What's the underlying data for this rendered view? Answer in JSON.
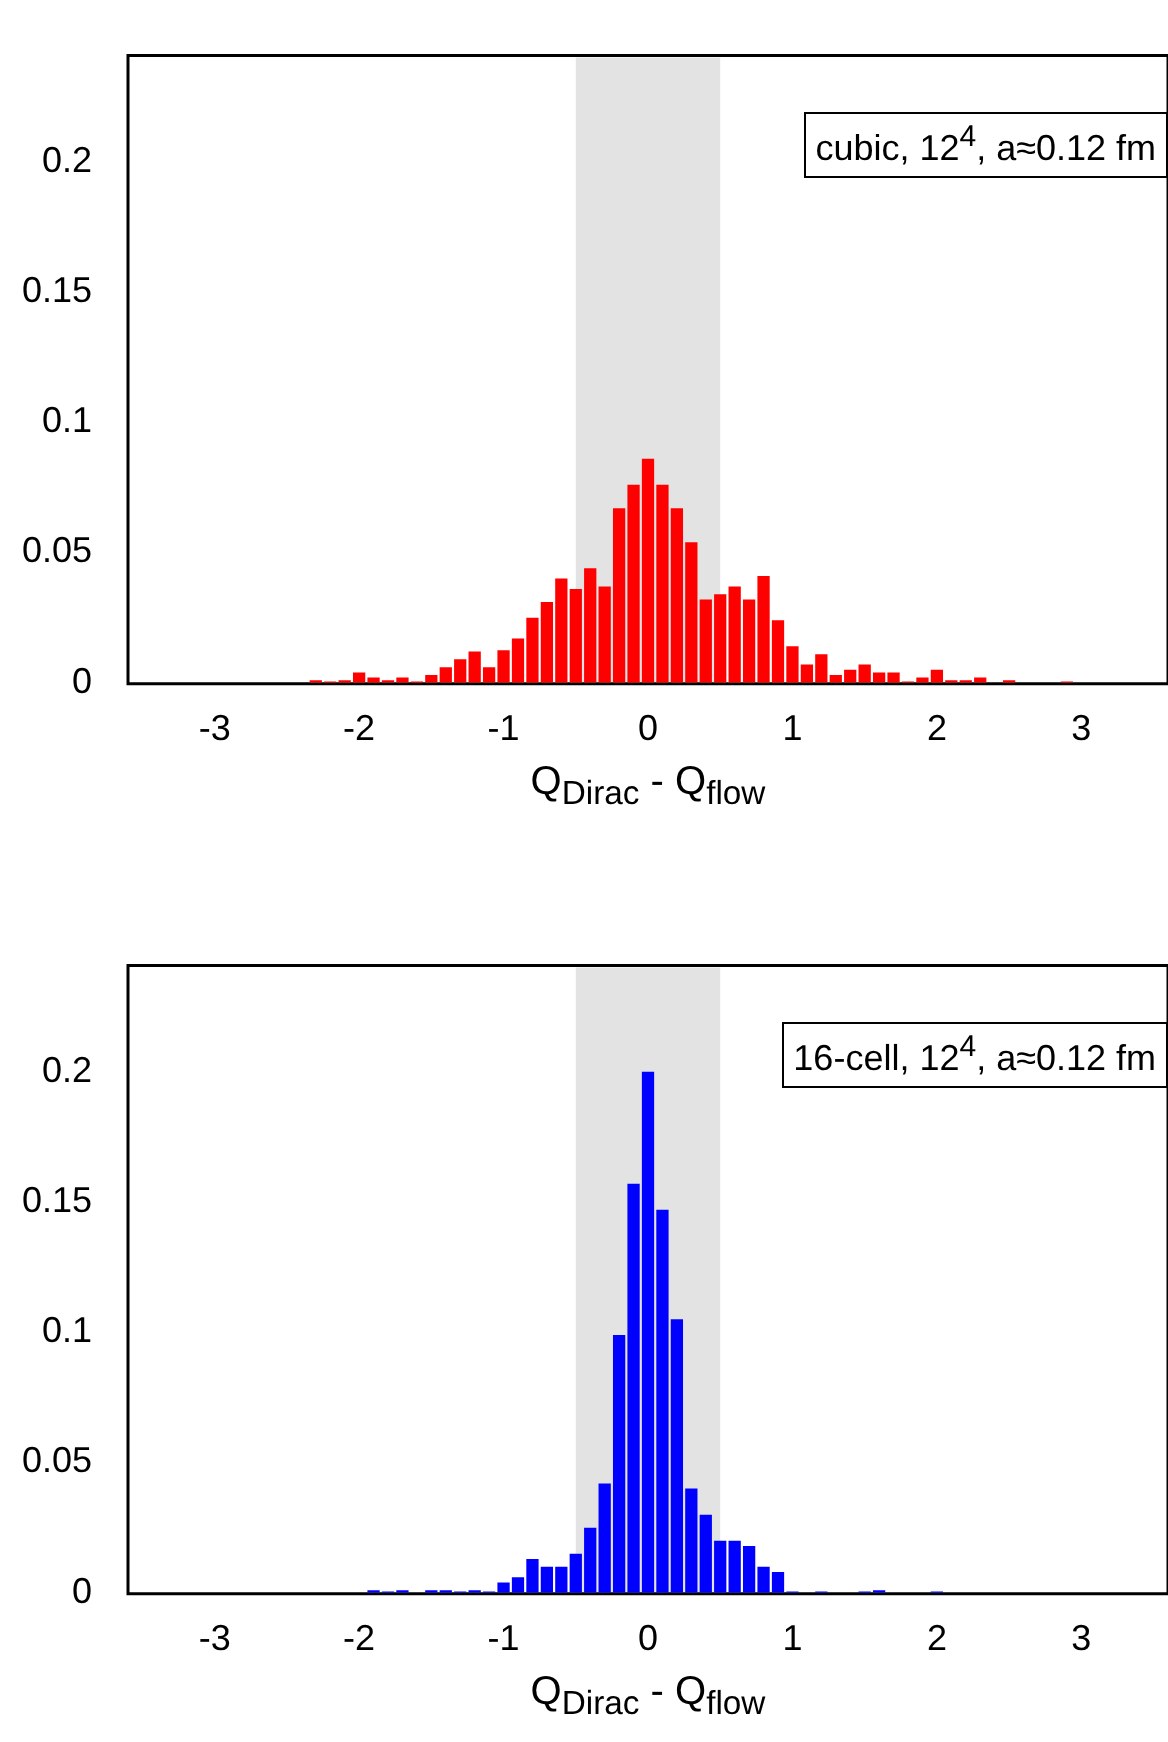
{
  "chart_data": [
    {
      "type": "histogram",
      "xlabel": "Q$_{Dirac}$ - Q$_{flow}$",
      "color": "#ff0000",
      "bins": [
        -2.35,
        -2.25,
        -2.15,
        -2.05,
        -1.95,
        -1.85,
        -1.75,
        -1.65,
        -1.55,
        -1.45,
        -1.35,
        -1.25,
        -1.15,
        -1.05,
        -0.95,
        -0.85,
        -0.75,
        -0.65,
        -0.55,
        -0.45,
        -0.35,
        -0.25,
        -0.15,
        -0.05,
        0.05,
        0.15,
        0.25,
        0.35,
        0.45,
        0.55,
        0.65,
        0.75,
        0.85,
        0.95,
        1.05,
        1.15,
        1.25,
        1.35,
        1.45,
        1.55,
        1.65,
        1.75,
        1.85,
        1.95,
        2.05,
        2.15,
        2.25,
        2.35,
        2.45,
        2.55,
        2.65,
        2.75,
        2.85,
        2.95
      ],
      "values": [
        0.001,
        0.0005,
        0.001,
        0.004,
        0.002,
        0.001,
        0.002,
        0.0005,
        0.003,
        0.006,
        0.009,
        0.012,
        0.006,
        0.0125,
        0.017,
        0.025,
        0.031,
        0.04,
        0.036,
        0.044,
        0.037,
        0.067,
        0.076,
        0.086,
        0.076,
        0.067,
        0.054,
        0.032,
        0.034,
        0.037,
        0.032,
        0.041,
        0.024,
        0.014,
        0.007,
        0.011,
        0.003,
        0.005,
        0.007,
        0.004,
        0.004,
        0.0005,
        0.002,
        0.005,
        0.001,
        0.001,
        0.002,
        0,
        0.001,
        0,
        0,
        0,
        0.0005
      ],
      "xlim": [
        -3.6,
        3.6
      ],
      "xticks": [
        -3,
        -2,
        -1,
        0,
        1,
        2,
        3
      ],
      "ylim": [
        0,
        0.24
      ],
      "yticks": [
        0,
        0.05,
        0.1,
        0.15,
        0.2
      ],
      "bands": [
        {
          "axis": "x",
          "from": -0.5,
          "to": 0.5,
          "color": "#e3e3e3"
        }
      ],
      "annotations": [
        "cubic, 12$^{4}$, a≈0.12 fm"
      ],
      "grid": false,
      "legend": false
    },
    {
      "type": "histogram",
      "xlabel": "Q$_{Dirac}$ - Q$_{flow}$",
      "color": "#0000ff",
      "bins": [
        -1.95,
        -1.85,
        -1.75,
        -1.65,
        -1.55,
        -1.45,
        -1.35,
        -1.25,
        -1.15,
        -1.05,
        -0.95,
        -0.85,
        -0.75,
        -0.65,
        -0.55,
        -0.45,
        -0.35,
        -0.25,
        -0.15,
        -0.05,
        0.05,
        0.15,
        0.25,
        0.35,
        0.45,
        0.55,
        0.65,
        0.75,
        0.85,
        0.95,
        1.05,
        1.15,
        1.25,
        1.35,
        1.45,
        1.55,
        1.65,
        1.75,
        1.85,
        1.95,
        2.05
      ],
      "values": [
        0.001,
        0.0005,
        0.001,
        0,
        0.001,
        0.001,
        0.0005,
        0.001,
        0.0005,
        0.004,
        0.006,
        0.013,
        0.01,
        0.01,
        0.015,
        0.025,
        0.042,
        0.099,
        0.157,
        0.2,
        0.147,
        0.105,
        0.04,
        0.03,
        0.02,
        0.02,
        0.018,
        0.01,
        0.008,
        0.0005,
        0,
        0.0005,
        0,
        0,
        0.0005,
        0.001,
        0,
        0,
        0,
        0.0005
      ],
      "xlim": [
        -3.6,
        3.6
      ],
      "xticks": [
        -3,
        -2,
        -1,
        0,
        1,
        2,
        3
      ],
      "ylim": [
        0,
        0.24
      ],
      "yticks": [
        0,
        0.05,
        0.1,
        0.15,
        0.2
      ],
      "bands": [
        {
          "axis": "x",
          "from": -0.5,
          "to": 0.5,
          "color": "#e3e3e3"
        }
      ],
      "annotations": [
        "16-cell, 12$^{4}$, a≈0.12 fm"
      ],
      "grid": false,
      "legend": false
    }
  ]
}
